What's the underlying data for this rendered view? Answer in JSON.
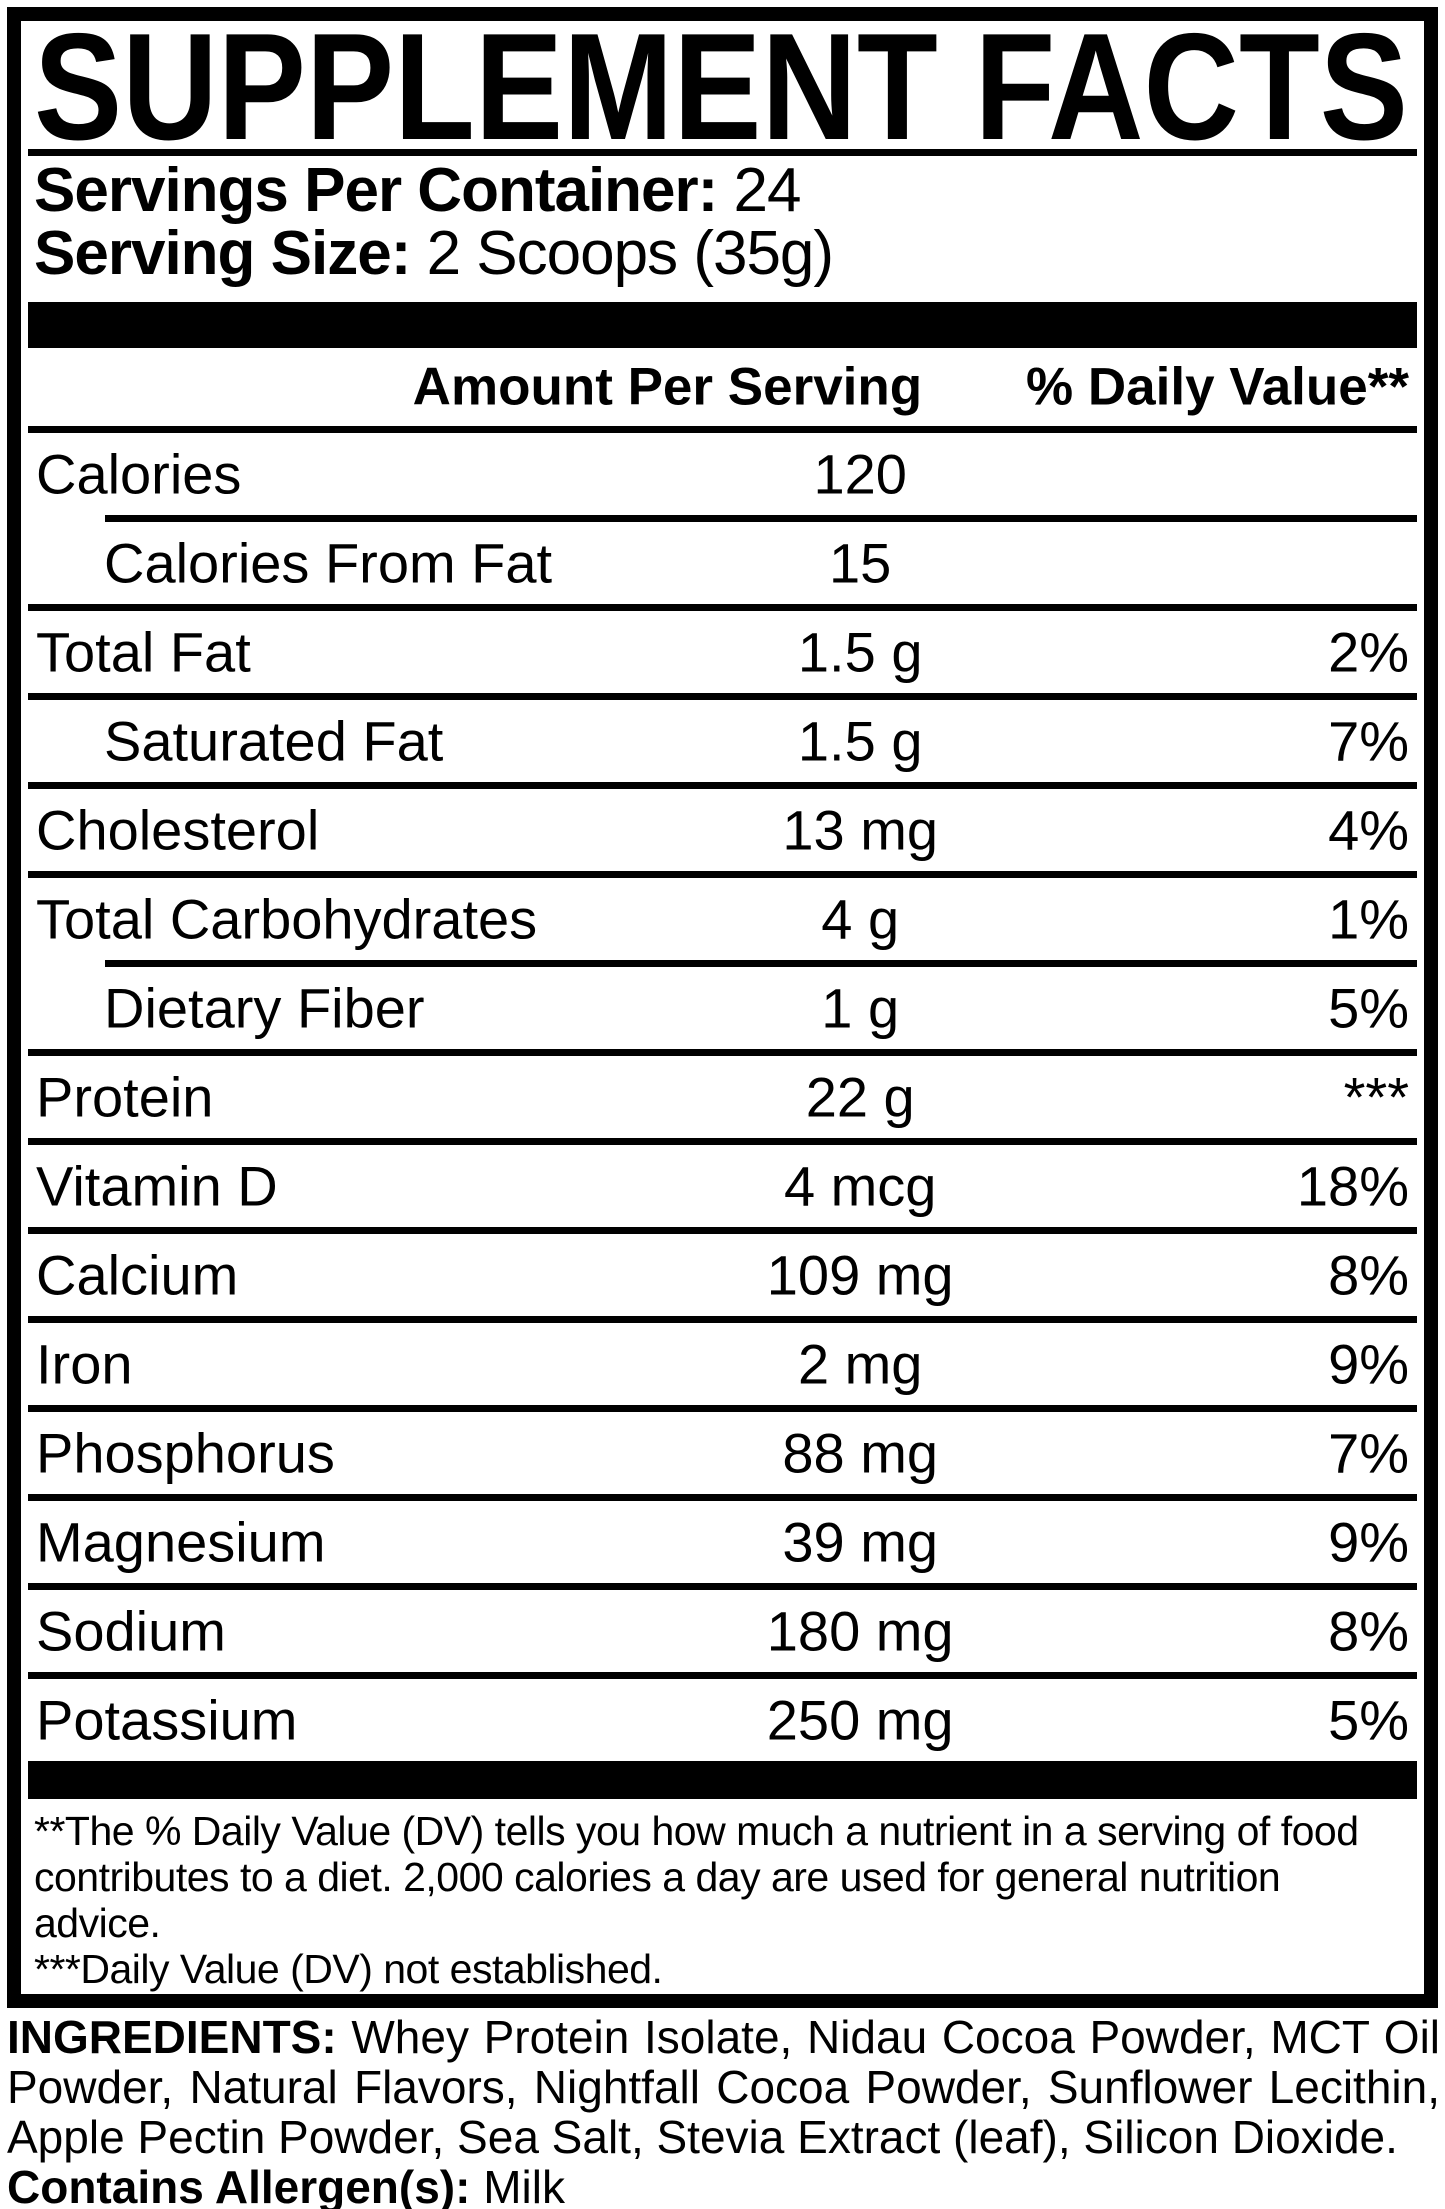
{
  "title": "SUPPLEMENT FACTS",
  "serving_info": {
    "servings_per_container_label": "Servings Per Container:",
    "servings_per_container_value": "24",
    "serving_size_label": "Serving Size:",
    "serving_size_value": "2 Scoops (35g)"
  },
  "table": {
    "header": {
      "amount": "Amount Per Serving",
      "daily_value": "% Daily Value**"
    },
    "rows": [
      {
        "name": "Calories",
        "amount": "120",
        "dv": "",
        "indent": false,
        "sep_above": "header"
      },
      {
        "name": "Calories From Fat",
        "amount": "15",
        "dv": "",
        "indent": true,
        "sep_above": "indent"
      },
      {
        "name": "Total Fat",
        "amount": "1.5 g",
        "dv": "2%",
        "indent": false,
        "sep_above": "full"
      },
      {
        "name": "Saturated Fat",
        "amount": "1.5 g",
        "dv": "7%",
        "indent": true,
        "sep_above": "full"
      },
      {
        "name": "Cholesterol",
        "amount": "13 mg",
        "dv": "4%",
        "indent": false,
        "sep_above": "full"
      },
      {
        "name": "Total Carbohydrates",
        "amount": "4 g",
        "dv": "1%",
        "indent": false,
        "sep_above": "full"
      },
      {
        "name": "Dietary Fiber",
        "amount": "1 g",
        "dv": "5%",
        "indent": true,
        "sep_above": "indent"
      },
      {
        "name": "Protein",
        "amount": "22 g",
        "dv": "***",
        "indent": false,
        "sep_above": "full"
      },
      {
        "name": "Vitamin D",
        "amount": "4 mcg",
        "dv": "18%",
        "indent": false,
        "sep_above": "full"
      },
      {
        "name": "Calcium",
        "amount": "109 mg",
        "dv": "8%",
        "indent": false,
        "sep_above": "full"
      },
      {
        "name": "Iron",
        "amount": "2 mg",
        "dv": "9%",
        "indent": false,
        "sep_above": "full"
      },
      {
        "name": "Phosphorus",
        "amount": "88 mg",
        "dv": "7%",
        "indent": false,
        "sep_above": "full"
      },
      {
        "name": "Magnesium",
        "amount": "39 mg",
        "dv": "9%",
        "indent": false,
        "sep_above": "full"
      },
      {
        "name": "Sodium",
        "amount": "180 mg",
        "dv": "8%",
        "indent": false,
        "sep_above": "full"
      },
      {
        "name": "Potassium",
        "amount": "250 mg",
        "dv": "5%",
        "indent": false,
        "sep_above": "full"
      }
    ]
  },
  "footnotes": {
    "daily_value_note": "**The % Daily Value (DV) tells you how much a nutrient in a serving of food contributes to a diet. 2,000 calories a day are used for general nutrition advice.",
    "not_established_note": "***Daily Value (DV) not established."
  },
  "ingredients": {
    "label": "INGREDIENTS:",
    "list": "Whey Protein Isolate, Nidau Cocoa Powder, MCT Oil Powder, Natural Flavors, Nightfall Cocoa Powder, Sunflower Lecithin, Apple Pectin Powder, Sea Salt, Stevia Extract (leaf), Silicon Dioxide.",
    "allergen_label": "Contains Allergen(s):",
    "allergen_value": "Milk"
  },
  "colors": {
    "text": "#000000",
    "background": "#ffffff"
  }
}
